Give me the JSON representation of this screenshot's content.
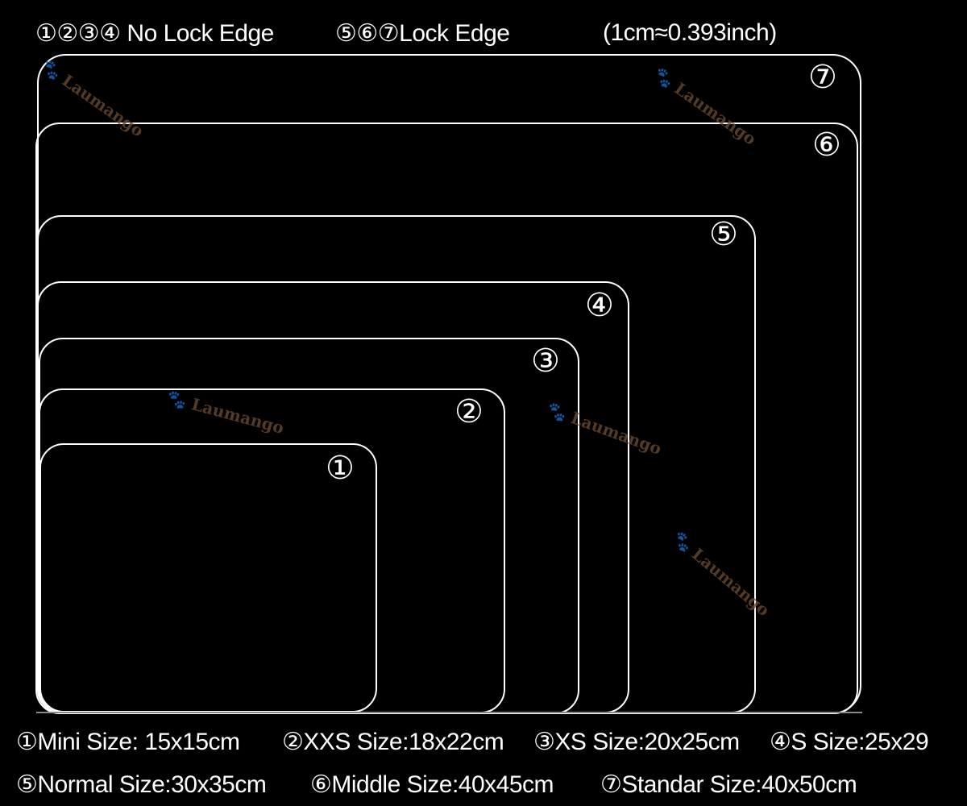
{
  "header": {
    "no_lock_label": "①②③④ No Lock Edge",
    "lock_label": "⑤⑥⑦Lock Edge",
    "conversion": "(1cm≈0.393inch)"
  },
  "pads": [
    {
      "marker": "①"
    },
    {
      "marker": "②"
    },
    {
      "marker": "③"
    },
    {
      "marker": "④"
    },
    {
      "marker": "⑤"
    },
    {
      "marker": "⑥"
    },
    {
      "marker": "⑦"
    }
  ],
  "legend": [
    "①Mini Size: 15x15cm",
    "②XXS Size:18x22cm",
    "③XS Size:20x25cm",
    "④S Size:25x29",
    "⑤Normal Size:30x35cm",
    "⑥Middle Size:40x45cm",
    "⑦Standar Size:40x50cm"
  ],
  "watermark": "Laumango",
  "colors": {
    "background": "#000000",
    "outline": "#ffffff",
    "watermark": "#6b4a30"
  }
}
